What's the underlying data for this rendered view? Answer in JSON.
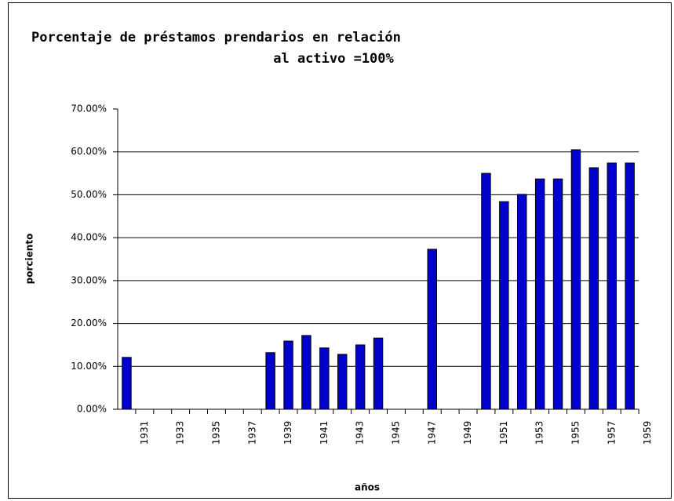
{
  "chart_data": {
    "type": "bar",
    "title": [
      "Porcentaje de préstamos prendarios en relación",
      "al activo =100%"
    ],
    "ylabel": "porciento",
    "xlabel": "años",
    "categories": [
      null,
      "1931",
      null,
      "1933",
      null,
      "1935",
      null,
      "1937",
      null,
      "1939",
      null,
      "1941",
      null,
      "1943",
      null,
      "1945",
      null,
      "1947",
      null,
      "1949",
      null,
      "1951",
      null,
      "1953",
      null,
      "1955",
      null,
      "1957",
      null,
      "1959"
    ],
    "values": [
      12.1,
      null,
      null,
      null,
      null,
      null,
      null,
      null,
      13.2,
      15.9,
      17.2,
      14.3,
      12.8,
      15.0,
      16.6,
      null,
      null,
      37.3,
      null,
      null,
      55.0,
      48.4,
      50.1,
      53.7,
      53.7,
      60.5,
      56.3,
      57.4,
      57.4,
      null
    ],
    "color": "#0000cc",
    "ylim": [
      0,
      70
    ],
    "yticks": [
      {
        "value": 0,
        "label": "0.00%"
      },
      {
        "value": 10,
        "label": "10.00%"
      },
      {
        "value": 20,
        "label": "20.00%"
      },
      {
        "value": 30,
        "label": "30.00%"
      },
      {
        "value": 40,
        "label": "40.00%"
      },
      {
        "value": 50,
        "label": "50.00%"
      },
      {
        "value": 60,
        "label": "60.00%"
      },
      {
        "value": 70,
        "label": "70.00%"
      }
    ],
    "grid": true
  }
}
